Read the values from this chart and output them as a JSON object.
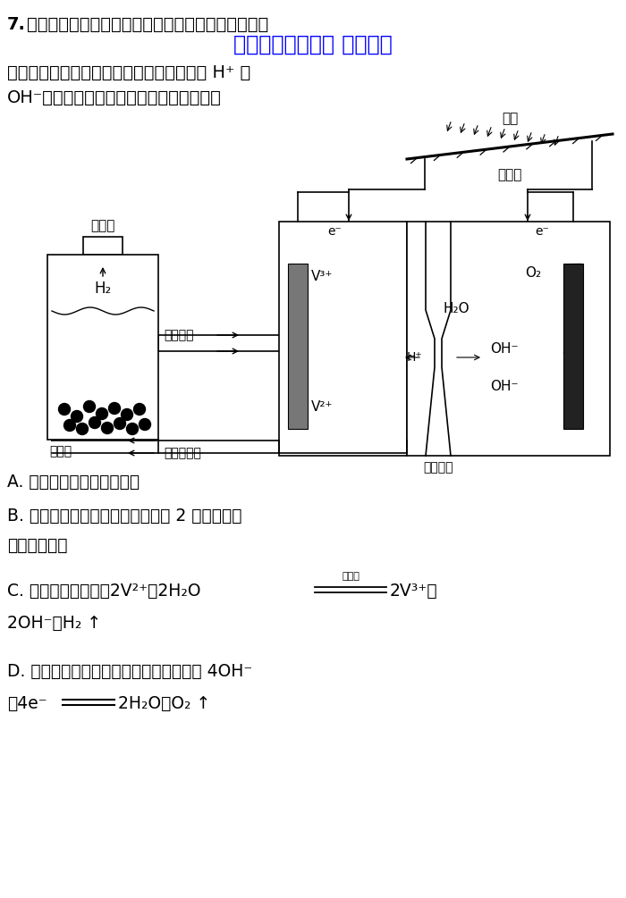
{
  "bg_color": "#ffffff",
  "question_number": "7.",
  "question_text_line1": "光电池在光照条件下可产生电压，如图所示装置可以",
  "watermark_text": "微信公众号关注： 趣找答案",
  "watermark_color": "#0000ff",
  "question_text_line2": "实现光能的充分利用，双极膜可将水解离为 H⁺ 和",
  "question_text_line3": "OH⁻，并实现定向通过。下列说法错误的是",
  "option_A": "A. 双极膜的左侧电极为阴极",
  "option_B_line1": "B. 该装置中涉及的能量转化形式有 2 种（不考虑",
  "option_B_line2": "热能的转化）",
  "option_C_line1": "C. 再生池中的反应：2V²⁺＋2H₂O",
  "option_C_catalyst": "催化剂",
  "option_C_line1b": "2V³⁺＋",
  "option_C_line2": "2OH⁻＋H₂ ↑",
  "option_D_line1": "D. 光照过程中阳极区溶液的电极反应式为 4OH⁻",
  "option_D_line2": "－4e⁻ ══2H₂O＋O₂ ↑",
  "font_size_question": 14,
  "font_size_option": 13.5,
  "text_color": "#000000",
  "black": "#000000"
}
